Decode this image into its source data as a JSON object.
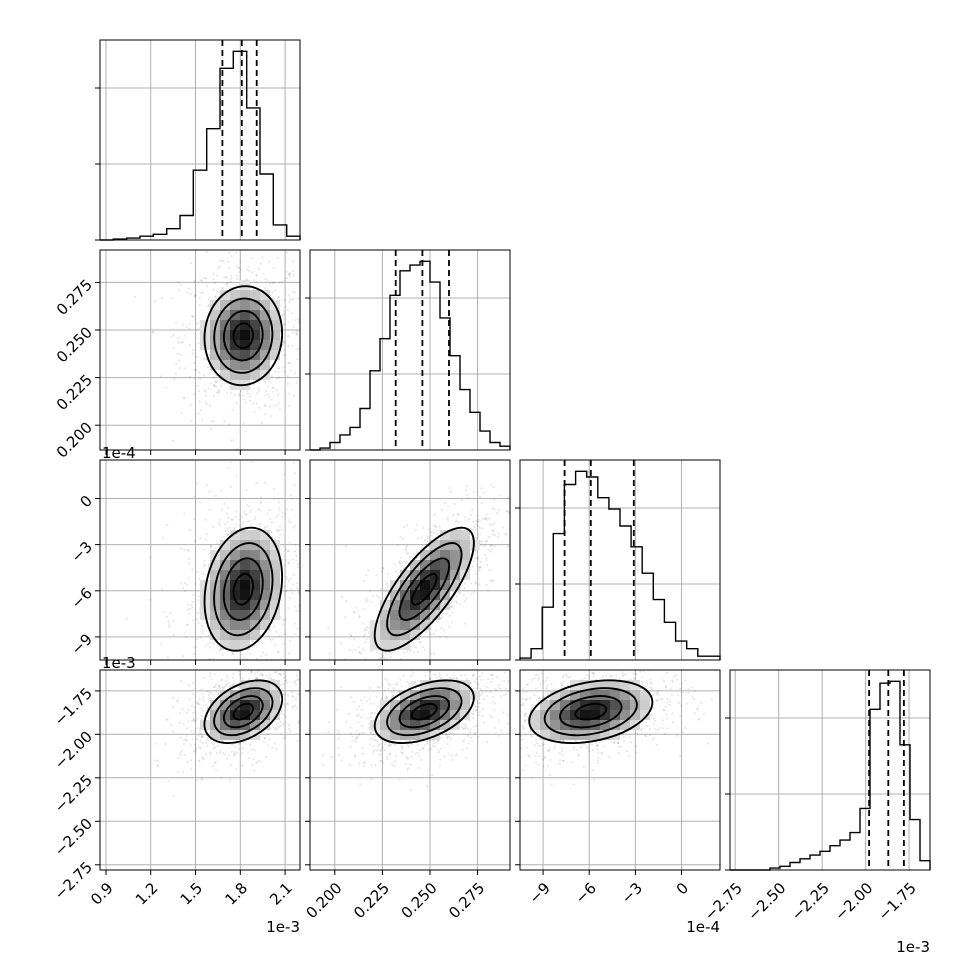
{
  "chart_data": {
    "type": "corner",
    "title": "",
    "parameters": [
      {
        "label": "",
        "range": [
          0.86,
          2.2
        ],
        "scale": 0.001,
        "offset_text": "1e-3",
        "ticks": [
          0.9,
          1.2,
          1.5,
          1.8,
          2.1
        ],
        "tick_labels": [
          "0.9",
          "1.2",
          "1.5",
          "1.8",
          "2.1"
        ],
        "quantiles": [
          1.68,
          1.81,
          1.91
        ],
        "hist": [
          0.0,
          0.005,
          0.01,
          0.02,
          0.03,
          0.06,
          0.13,
          0.37,
          0.59,
          0.91,
          1.0,
          0.7,
          0.35,
          0.08,
          0.02
        ],
        "center": 1.82,
        "sd": 0.13
      },
      {
        "label": "",
        "range": [
          0.187,
          0.292
        ],
        "scale": 1,
        "offset_text": "",
        "ticks": [
          0.2,
          0.225,
          0.25,
          0.275
        ],
        "tick_labels": [
          "0.200",
          "0.225",
          "0.250",
          "0.275"
        ],
        "quantiles": [
          0.232,
          0.246,
          0.26
        ],
        "hist": [
          0.0,
          0.01,
          0.04,
          0.08,
          0.12,
          0.22,
          0.42,
          0.59,
          0.82,
          0.95,
          0.98,
          1.0,
          0.89,
          0.7,
          0.5,
          0.32,
          0.2,
          0.1,
          0.04,
          0.02
        ],
        "center": 0.247,
        "sd": 0.013
      },
      {
        "label": "",
        "range": [
          -10.5,
          2.5
        ],
        "scale": 0.0001,
        "offset_text": "1e-4",
        "ticks": [
          -9,
          -6,
          -3,
          0
        ],
        "tick_labels": [
          "−9",
          "−6",
          "−3",
          "0"
        ],
        "quantiles": [
          -7.6,
          -5.9,
          -3.1
        ],
        "hist": [
          0.01,
          0.06,
          0.28,
          0.67,
          0.93,
          1.0,
          0.97,
          0.86,
          0.8,
          0.71,
          0.6,
          0.46,
          0.32,
          0.2,
          0.1,
          0.06,
          0.02,
          0.02
        ],
        "center": -5.9,
        "sd": 2.0
      },
      {
        "label": "",
        "range": [
          -2.78,
          -1.63
        ],
        "scale": 0.001,
        "offset_text": "1e-3",
        "ticks": [
          -2.75,
          -2.5,
          -2.25,
          -2.0,
          -1.75
        ],
        "tick_labels": [
          "−2.75",
          "−2.50",
          "−2.25",
          "−2.00",
          "−1.75"
        ],
        "quantiles": [
          -1.98,
          -1.87,
          -1.78
        ],
        "hist": [
          0.0,
          0.0,
          0.0,
          0.0,
          0.01,
          0.02,
          0.04,
          0.06,
          0.08,
          0.1,
          0.13,
          0.16,
          0.2,
          0.33,
          0.86,
          1.0,
          1.01,
          0.67,
          0.27,
          0.05
        ],
        "center": -1.87,
        "sd": 0.09
      }
    ],
    "pairs": [
      {
        "x": 0,
        "y": 1,
        "rho": 0.05
      },
      {
        "x": 0,
        "y": 2,
        "rho": 0.2
      },
      {
        "x": 1,
        "y": 2,
        "rho": 0.75
      },
      {
        "x": 0,
        "y": 3,
        "rho": 0.4
      },
      {
        "x": 1,
        "y": 3,
        "rho": 0.45
      },
      {
        "x": 2,
        "y": 3,
        "rho": 0.3
      }
    ],
    "grid": true,
    "color": "#000000"
  }
}
